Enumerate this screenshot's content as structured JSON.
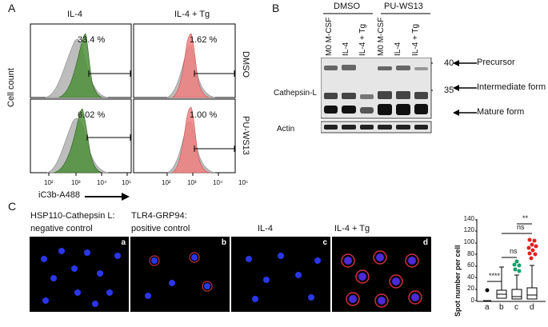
{
  "panel_a": {
    "label": "A",
    "col_titles": [
      "IL-4",
      "IL-4 + Tg"
    ],
    "row_labels": [
      "DMSO",
      "PU-WS13"
    ],
    "y_axis_label": "Cell count",
    "x_axis_label": "iC3b-A488",
    "x_ticks": [
      "10²",
      "10³",
      "10⁴",
      "10⁵"
    ],
    "percents": [
      "33.4 %",
      "1.62 %",
      "6.02 %",
      "1.00 %"
    ],
    "colors": {
      "control": "#bdbdbd",
      "il4": "#4e8f3a",
      "tg": "#f08080"
    }
  },
  "panel_b": {
    "label": "B",
    "groups": [
      "DMSO",
      "PU-WS13"
    ],
    "lanes": [
      "M0 M-CSF",
      "IL-4",
      "IL-4 + Tg",
      "M0 M-CSF",
      "IL-4",
      "IL-4 + Tg"
    ],
    "row_label": "Cathepsin-L",
    "loading_label": "Actin",
    "markers": [
      "40",
      "35"
    ],
    "forms": [
      "Precursor",
      "Intermediate form",
      "Mature form"
    ]
  },
  "panel_c": {
    "label": "C",
    "images": [
      {
        "title_line1": "HSP110-Cathepsin L:",
        "title_line2": "negative control",
        "tag": "a"
      },
      {
        "title_line1": "TLR4-GRP94:",
        "title_line2": "positive control",
        "tag": "b"
      },
      {
        "title_line1": "",
        "title_line2": "IL-4",
        "tag": "c"
      },
      {
        "title_line1": "",
        "title_line2": "IL-4 + Tg",
        "tag": "d"
      }
    ],
    "boxplot": {
      "ylabel": "Spot number per cell",
      "yticks": [
        "0",
        "20",
        "40",
        "60",
        "80",
        "100",
        "120",
        "140"
      ],
      "categories": [
        "a",
        "b",
        "c",
        "d"
      ],
      "significance": [
        "****",
        "ns",
        "ns",
        "**"
      ],
      "colors": {
        "outlier_c": "#1a9e6e",
        "outlier_d": "#e02020"
      }
    }
  }
}
